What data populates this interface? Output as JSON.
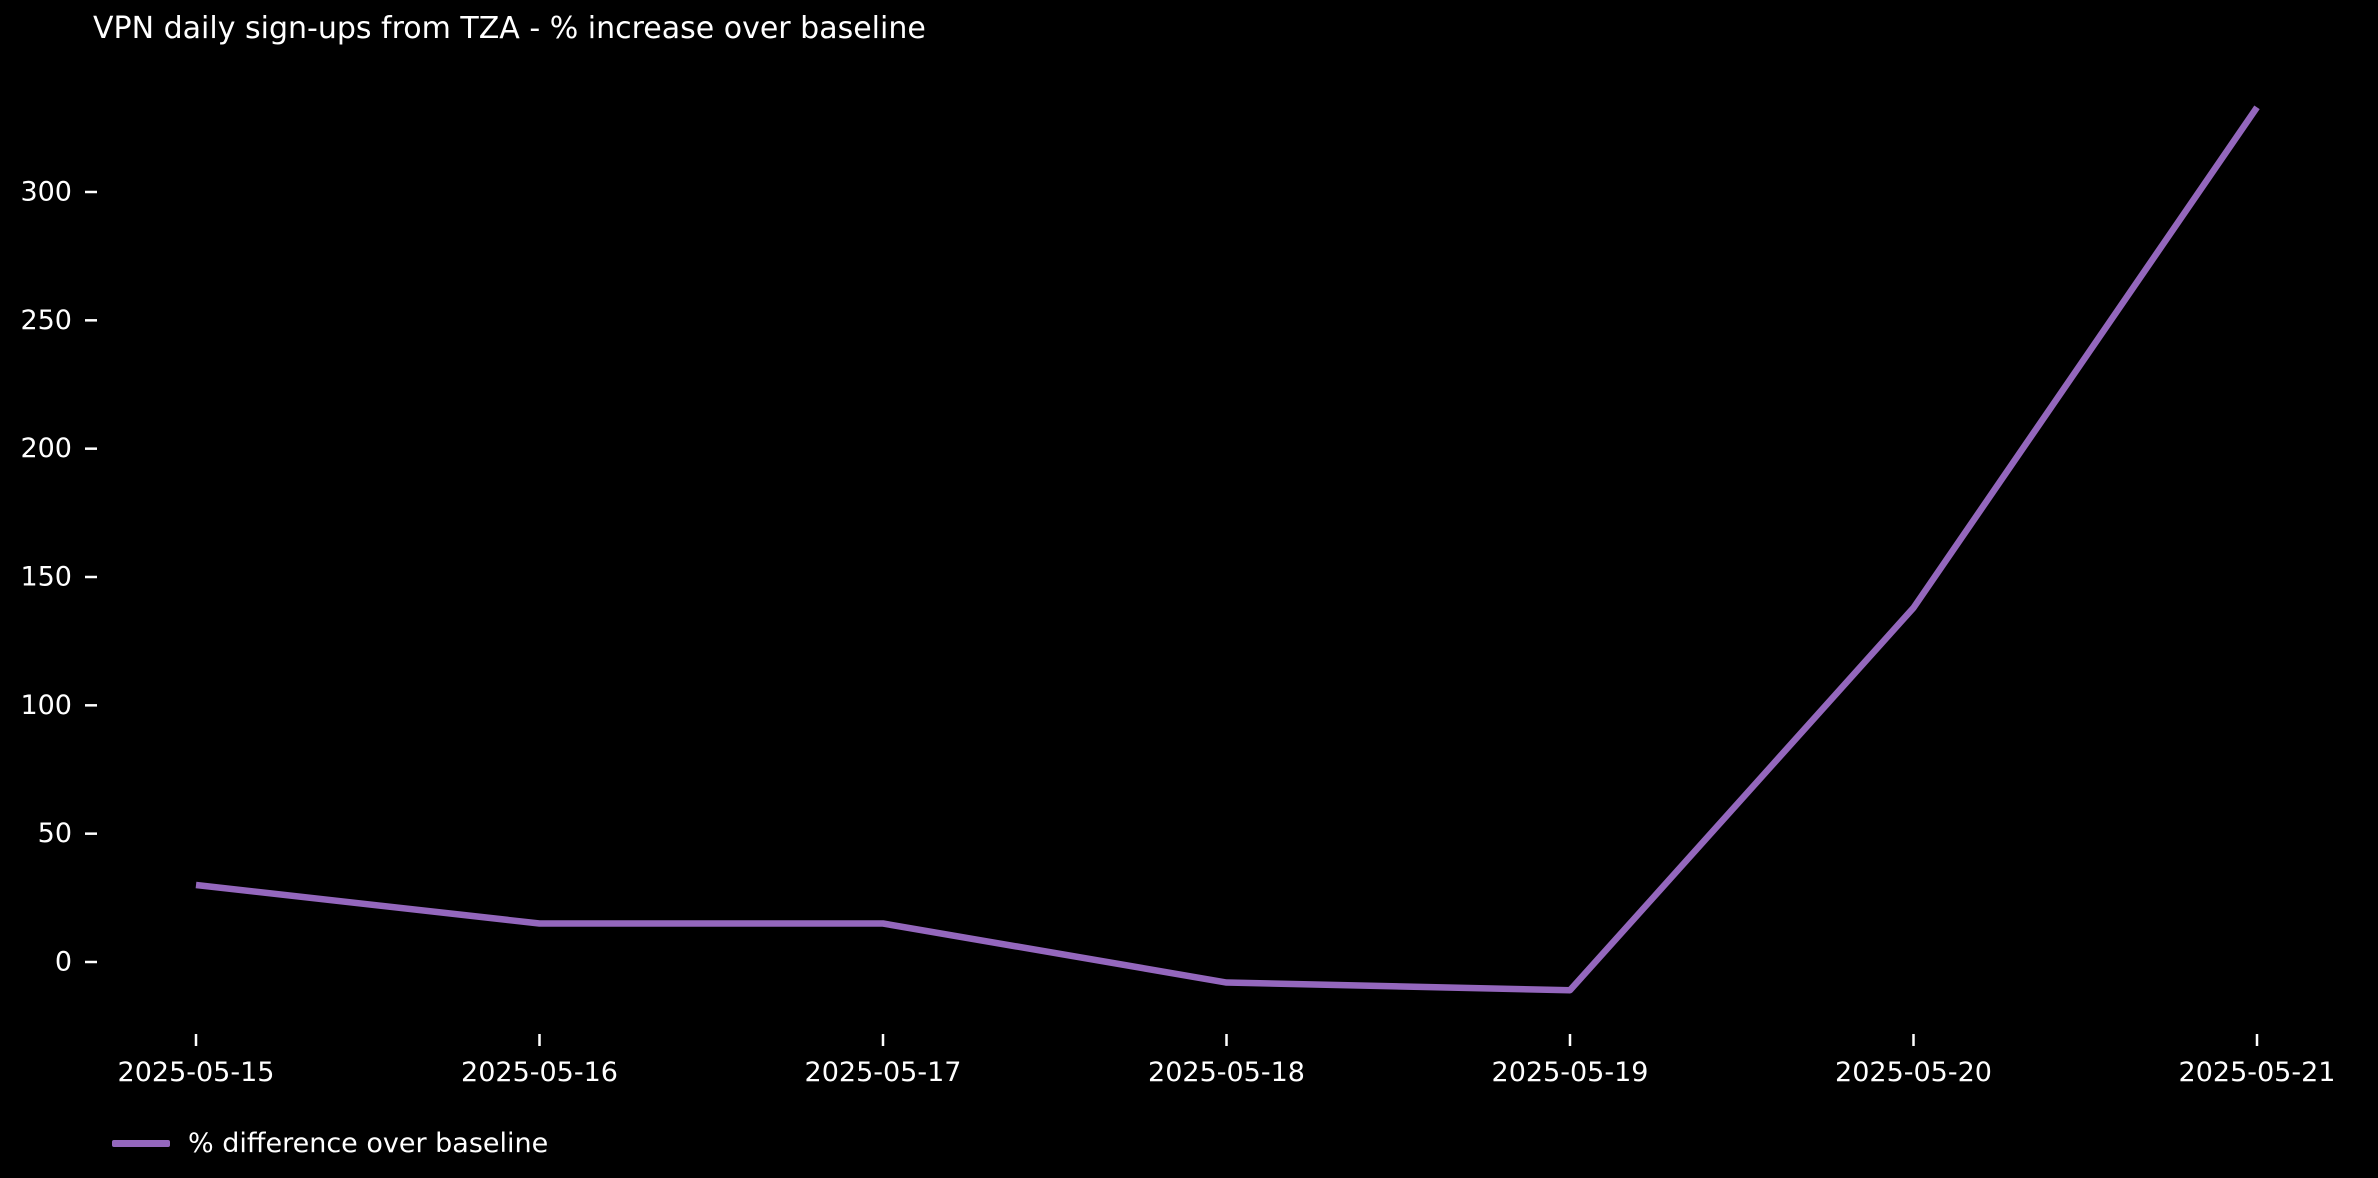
{
  "title": "VPN daily sign-ups from TZA - % increase over baseline",
  "colors": {
    "background": "#000000",
    "text": "#ffffff",
    "tick": "#ffffff",
    "line": "#9467bd"
  },
  "legend": {
    "label": "% difference over baseline"
  },
  "chart_data": {
    "type": "line",
    "title": "VPN daily sign-ups from TZA - % increase over baseline",
    "x": [
      "2025-05-15",
      "2025-05-16",
      "2025-05-17",
      "2025-05-18",
      "2025-05-19",
      "2025-05-20",
      "2025-05-21"
    ],
    "series": [
      {
        "name": "% difference over baseline",
        "color": "#9467bd",
        "values": [
          30,
          15,
          15,
          -8,
          -11,
          138,
          333
        ]
      }
    ],
    "xlabel": "",
    "ylabel": "",
    "yticks": [
      0,
      50,
      100,
      150,
      200,
      250,
      300
    ],
    "ylim": [
      -45,
      350
    ],
    "grid": false,
    "legend_position": "lower left"
  }
}
